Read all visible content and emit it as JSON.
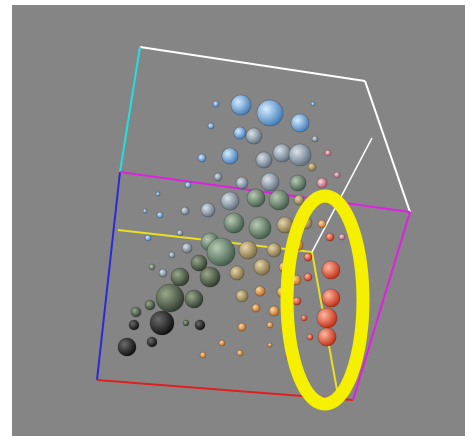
{
  "window": {
    "title": ""
  },
  "viewer": {
    "background": "#858585",
    "axes": {
      "x_color": "#e02020",
      "y_color": "#2a2ad8",
      "z_color": "#20e0e0",
      "box_color": "#ffffff",
      "section_colors": [
        "#e020e0",
        "#e8e020"
      ]
    },
    "annotation": {
      "shape": "ellipse",
      "color": "#f5f000"
    },
    "sphere_color_scale": [
      "#1a1a1a",
      "#4f6b5a",
      "#a89a74",
      "#8faec8",
      "#6aa6e0",
      "#e65030"
    ]
  }
}
